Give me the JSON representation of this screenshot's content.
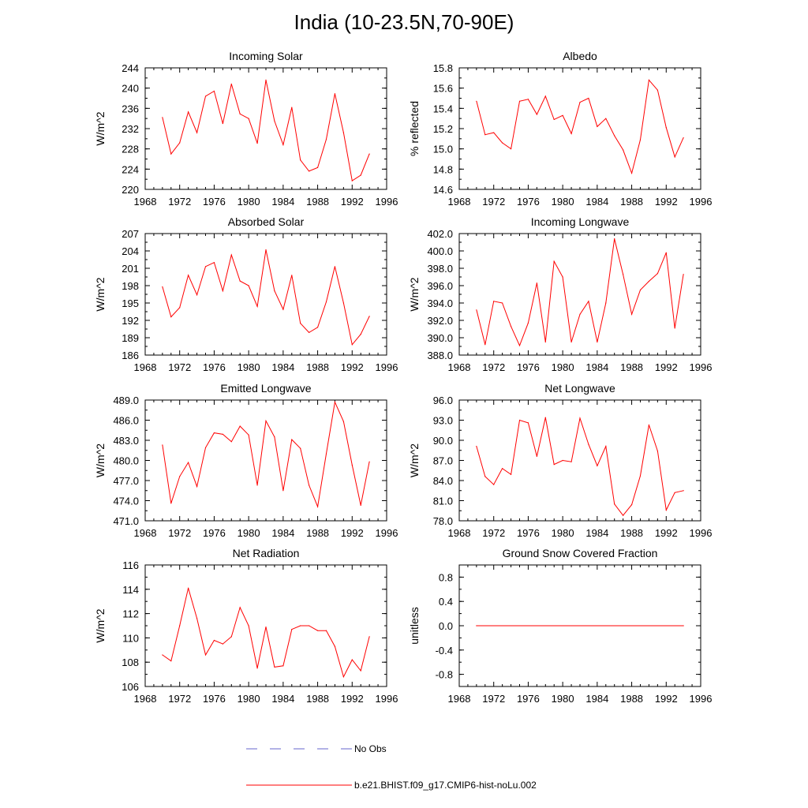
{
  "title": "India (10-23.5N,70-90E)",
  "colors": {
    "model_line": "#ff0000",
    "obs_line": "#6666cc",
    "axis": "#000000"
  },
  "legend": [
    {
      "label": "No Obs",
      "style": "dashed",
      "color": "#6666cc"
    },
    {
      "label": "b.e21.BHIST.f09_g17.CMIP6-hist-noLu.002",
      "style": "solid",
      "color": "#ff0000"
    }
  ],
  "chart_data": [
    {
      "type": "line",
      "title": "Incoming Solar",
      "ylabel": "W/m^2",
      "xlim": [
        1968,
        1996
      ],
      "xticks": [
        "1968",
        "1972",
        "1976",
        "1980",
        "1984",
        "1988",
        "1992",
        "1996"
      ],
      "ylim": [
        220,
        244
      ],
      "yticks": [
        "220",
        "224",
        "228",
        "232",
        "236",
        "240",
        "244"
      ],
      "x": [
        1970,
        1971,
        1972,
        1973,
        1974,
        1975,
        1976,
        1977,
        1978,
        1979,
        1980,
        1981,
        1982,
        1983,
        1984,
        1985,
        1986,
        1987,
        1988,
        1989,
        1990,
        1991,
        1992,
        1993,
        1994
      ],
      "series": [
        {
          "values": [
            234.2,
            227.0,
            229.2,
            235.3,
            231.2,
            238.4,
            239.4,
            233.0,
            240.8,
            234.9,
            234.0,
            229.1,
            241.6,
            233.5,
            228.8,
            236.2,
            225.8,
            223.6,
            224.3,
            229.9,
            238.9,
            231.2,
            221.7,
            222.8,
            227.0
          ]
        }
      ]
    },
    {
      "type": "line",
      "title": "Albedo",
      "ylabel": "% reflected",
      "xlim": [
        1968,
        1996
      ],
      "xticks": [
        "1968",
        "1972",
        "1976",
        "1980",
        "1984",
        "1988",
        "1992",
        "1996"
      ],
      "ylim": [
        14.6,
        15.8
      ],
      "yticks": [
        "14.6",
        "14.8",
        "15.0",
        "15.2",
        "15.4",
        "15.6",
        "15.8"
      ],
      "x": [
        1970,
        1971,
        1972,
        1973,
        1974,
        1975,
        1976,
        1977,
        1978,
        1979,
        1980,
        1981,
        1982,
        1983,
        1984,
        1985,
        1986,
        1987,
        1988,
        1989,
        1990,
        1991,
        1992,
        1993,
        1994
      ],
      "series": [
        {
          "values": [
            15.47,
            15.14,
            15.16,
            15.06,
            15.0,
            15.47,
            15.49,
            15.34,
            15.52,
            15.29,
            15.33,
            15.15,
            15.46,
            15.5,
            15.22,
            15.3,
            15.13,
            14.99,
            14.76,
            15.09,
            15.68,
            15.58,
            15.21,
            14.92,
            15.11
          ]
        }
      ]
    },
    {
      "type": "line",
      "title": "Absorbed Solar",
      "ylabel": "W/m^2",
      "xlim": [
        1968,
        1996
      ],
      "xticks": [
        "1968",
        "1972",
        "1976",
        "1980",
        "1984",
        "1988",
        "1992",
        "1996"
      ],
      "ylim": [
        186,
        207
      ],
      "yticks": [
        "186",
        "189",
        "192",
        "195",
        "198",
        "201",
        "204",
        "207"
      ],
      "x": [
        1970,
        1971,
        1972,
        1973,
        1974,
        1975,
        1976,
        1977,
        1978,
        1979,
        1980,
        1981,
        1982,
        1983,
        1984,
        1985,
        1986,
        1987,
        1988,
        1989,
        1990,
        1991,
        1992,
        1993,
        1994
      ],
      "series": [
        {
          "values": [
            197.8,
            192.6,
            194.2,
            199.8,
            196.4,
            201.3,
            202.0,
            197.1,
            203.3,
            198.8,
            198.0,
            194.4,
            204.2,
            197.1,
            193.9,
            199.8,
            191.5,
            189.9,
            190.8,
            195.2,
            201.3,
            195.0,
            187.8,
            189.6,
            192.7
          ]
        }
      ]
    },
    {
      "type": "line",
      "title": "Incoming Longwave",
      "ylabel": "W/m^2",
      "xlim": [
        1968,
        1996
      ],
      "xticks": [
        "1968",
        "1972",
        "1976",
        "1980",
        "1984",
        "1988",
        "1992",
        "1996"
      ],
      "ylim": [
        388.0,
        402.0
      ],
      "yticks": [
        "388.0",
        "390.0",
        "392.0",
        "394.0",
        "396.0",
        "398.0",
        "400.0",
        "402.0"
      ],
      "x": [
        1970,
        1971,
        1972,
        1973,
        1974,
        1975,
        1976,
        1977,
        1978,
        1979,
        1980,
        1981,
        1982,
        1983,
        1984,
        1985,
        1986,
        1987,
        1988,
        1989,
        1990,
        1991,
        1992,
        1993,
        1994
      ],
      "series": [
        {
          "values": [
            393.2,
            389.2,
            394.2,
            394.0,
            391.3,
            389.1,
            391.7,
            396.3,
            389.5,
            398.8,
            397.0,
            389.5,
            392.7,
            394.2,
            389.5,
            394.0,
            401.4,
            397.3,
            392.7,
            395.5,
            396.5,
            397.4,
            399.8,
            391.1,
            397.3
          ]
        }
      ]
    },
    {
      "type": "line",
      "title": "Emitted Longwave",
      "ylabel": "W/m^2",
      "xlim": [
        1968,
        1996
      ],
      "xticks": [
        "1968",
        "1972",
        "1976",
        "1980",
        "1984",
        "1988",
        "1992",
        "1996"
      ],
      "ylim": [
        471.0,
        489.0
      ],
      "yticks": [
        "471.0",
        "474.0",
        "477.0",
        "480.0",
        "483.0",
        "486.0",
        "489.0"
      ],
      "x": [
        1970,
        1971,
        1972,
        1973,
        1974,
        1975,
        1976,
        1977,
        1978,
        1979,
        1980,
        1981,
        1982,
        1983,
        1984,
        1985,
        1986,
        1987,
        1988,
        1989,
        1990,
        1991,
        1992,
        1993,
        1994
      ],
      "series": [
        {
          "values": [
            482.3,
            473.6,
            477.6,
            479.7,
            476.1,
            481.9,
            484.1,
            483.9,
            482.8,
            485.1,
            483.8,
            476.3,
            485.9,
            483.5,
            475.5,
            483.1,
            481.8,
            476.3,
            473.1,
            481.0,
            488.7,
            485.8,
            479.3,
            473.3,
            479.8
          ]
        }
      ]
    },
    {
      "type": "line",
      "title": "Net Longwave",
      "ylabel": "W/m^2",
      "xlim": [
        1968,
        1996
      ],
      "xticks": [
        "1968",
        "1972",
        "1976",
        "1980",
        "1984",
        "1988",
        "1992",
        "1996"
      ],
      "ylim": [
        78.0,
        96.0
      ],
      "yticks": [
        "78.0",
        "81.0",
        "84.0",
        "87.0",
        "90.0",
        "93.0",
        "96.0"
      ],
      "x": [
        1970,
        1971,
        1972,
        1973,
        1974,
        1975,
        1976,
        1977,
        1978,
        1979,
        1980,
        1981,
        1982,
        1983,
        1984,
        1985,
        1986,
        1987,
        1988,
        1989,
        1990,
        1991,
        1992,
        1993,
        1994
      ],
      "series": [
        {
          "values": [
            89.1,
            84.6,
            83.4,
            85.8,
            84.9,
            93.0,
            92.6,
            87.6,
            93.4,
            86.4,
            87.0,
            86.8,
            93.3,
            89.4,
            86.2,
            89.1,
            80.5,
            78.8,
            80.4,
            84.7,
            92.3,
            88.4,
            79.6,
            82.2,
            82.5
          ]
        }
      ]
    },
    {
      "type": "line",
      "title": "Net Radiation",
      "ylabel": "W/m^2",
      "xlim": [
        1968,
        1996
      ],
      "xticks": [
        "1968",
        "1972",
        "1976",
        "1980",
        "1984",
        "1988",
        "1992",
        "1996"
      ],
      "ylim": [
        106,
        116
      ],
      "yticks": [
        "106",
        "108",
        "110",
        "112",
        "114",
        "116"
      ],
      "x": [
        1970,
        1971,
        1972,
        1973,
        1974,
        1975,
        1976,
        1977,
        1978,
        1979,
        1980,
        1981,
        1982,
        1983,
        1984,
        1985,
        1986,
        1987,
        1988,
        1989,
        1990,
        1991,
        1992,
        1993,
        1994
      ],
      "series": [
        {
          "values": [
            108.6,
            108.1,
            111.0,
            114.1,
            111.6,
            108.6,
            109.8,
            109.5,
            110.1,
            112.5,
            111.0,
            107.5,
            110.9,
            107.6,
            107.7,
            110.7,
            111.0,
            111.0,
            110.6,
            110.6,
            109.3,
            106.8,
            108.2,
            107.3,
            110.1
          ]
        }
      ]
    },
    {
      "type": "line",
      "title": "Ground Snow Covered Fraction",
      "ylabel": "unitless",
      "xlim": [
        1968,
        1996
      ],
      "xticks": [
        "1968",
        "1972",
        "1976",
        "1980",
        "1984",
        "1988",
        "1992",
        "1996"
      ],
      "ylim": [
        -1.0,
        1.0
      ],
      "yticks": [
        "-0.8",
        "-0.4",
        "0.0",
        "0.4",
        "0.8"
      ],
      "yticks_values": [
        -0.8,
        -0.4,
        0.0,
        0.4,
        0.8
      ],
      "x": [
        1970,
        1994
      ],
      "series": [
        {
          "values": [
            0.0,
            0.0
          ]
        }
      ]
    }
  ]
}
